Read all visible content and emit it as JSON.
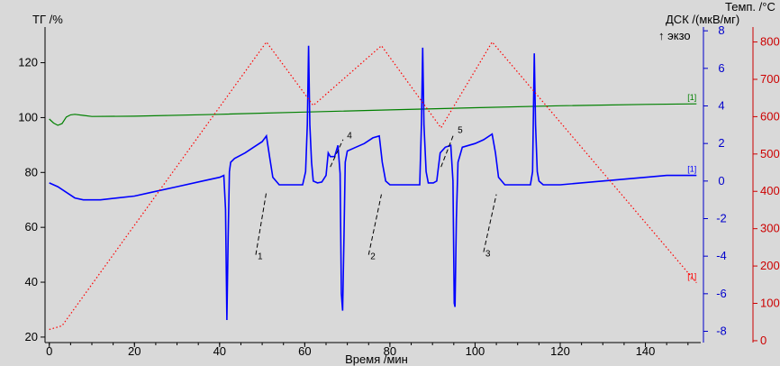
{
  "chart_data": {
    "type": "line",
    "background": "#d9d9d9",
    "x_axis": {
      "label": "Время /мин",
      "min": -1,
      "max": 153,
      "ticks": [
        0,
        20,
        40,
        60,
        80,
        100,
        120,
        140
      ],
      "color": "#000000"
    },
    "axes_left": {
      "label": "ТГ /%",
      "min": 18,
      "max": 133,
      "ticks": [
        20,
        40,
        60,
        80,
        100,
        120
      ],
      "color": "#000000"
    },
    "axes_dsc": {
      "label": "ДСК /(мкВ/мг)",
      "exo_label": "↑ экзо",
      "min": -8.6,
      "max": 8.2,
      "ticks": [
        -8,
        -6,
        -4,
        -2,
        0,
        2,
        4,
        6,
        8
      ],
      "color": "#0000cc"
    },
    "axes_temp": {
      "label": "Темп. /°C",
      "min": -5,
      "max": 840,
      "ticks": [
        0,
        100,
        200,
        300,
        400,
        500,
        600,
        700,
        800
      ],
      "color": "#cc0000"
    },
    "series": [
      {
        "axis": "left",
        "color": "#008000",
        "marker": "[1]",
        "points": [
          [
            0,
            99.5
          ],
          [
            1,
            98
          ],
          [
            2,
            97.2
          ],
          [
            3,
            97.8
          ],
          [
            4,
            100.2
          ],
          [
            5,
            101
          ],
          [
            6,
            101.2
          ],
          [
            8,
            100.8
          ],
          [
            10,
            100.4
          ],
          [
            20,
            100.5
          ],
          [
            40,
            101.2
          ],
          [
            60,
            102
          ],
          [
            80,
            102.8
          ],
          [
            100,
            103.6
          ],
          [
            120,
            104.3
          ],
          [
            140,
            104.8
          ],
          [
            152,
            105
          ]
        ]
      },
      {
        "axis": "dsc",
        "color": "#0000ff",
        "marker": "[1]",
        "points": [
          [
            0,
            -0.1
          ],
          [
            2,
            -0.3
          ],
          [
            4,
            -0.6
          ],
          [
            6,
            -0.9
          ],
          [
            8,
            -1
          ],
          [
            12,
            -1
          ],
          [
            16,
            -0.9
          ],
          [
            20,
            -0.8
          ],
          [
            24,
            -0.6
          ],
          [
            30,
            -0.3
          ],
          [
            36,
            0
          ],
          [
            40,
            0.2
          ],
          [
            41,
            0.3
          ],
          [
            41.4,
            -1.5
          ],
          [
            41.7,
            -7.4
          ],
          [
            42,
            -3
          ],
          [
            42.3,
            0.5
          ],
          [
            42.6,
            1
          ],
          [
            43.5,
            1.2
          ],
          [
            46,
            1.5
          ],
          [
            48,
            1.8
          ],
          [
            50,
            2.1
          ],
          [
            51,
            2.4
          ],
          [
            51.8,
            1.2
          ],
          [
            52.5,
            0.2
          ],
          [
            54,
            -0.2
          ],
          [
            58,
            -0.2
          ],
          [
            59.5,
            -0.2
          ],
          [
            60.2,
            0.5
          ],
          [
            60.6,
            3
          ],
          [
            60.9,
            7.2
          ],
          [
            61.2,
            3
          ],
          [
            61.6,
            1
          ],
          [
            62,
            0
          ],
          [
            63,
            -0.1
          ],
          [
            64,
            -0.05
          ],
          [
            65,
            0.3
          ],
          [
            65.5,
            1.5
          ],
          [
            66,
            1.3
          ],
          [
            67,
            1.3
          ],
          [
            67.8,
            1.9
          ],
          [
            68.3,
            0.4
          ],
          [
            68.6,
            -6
          ],
          [
            68.9,
            -6.9
          ],
          [
            69.2,
            -3
          ],
          [
            69.5,
            1
          ],
          [
            70,
            1.6
          ],
          [
            72,
            1.8
          ],
          [
            74,
            2
          ],
          [
            76,
            2.3
          ],
          [
            77.5,
            2.4
          ],
          [
            78.2,
            1
          ],
          [
            79,
            0
          ],
          [
            80,
            -0.2
          ],
          [
            84,
            -0.2
          ],
          [
            87,
            -0.2
          ],
          [
            87.4,
            3
          ],
          [
            87.7,
            7.1
          ],
          [
            88,
            3
          ],
          [
            88.5,
            0.5
          ],
          [
            89,
            -0.1
          ],
          [
            90.2,
            -0.1
          ],
          [
            91,
            0
          ],
          [
            91.8,
            1.5
          ],
          [
            93,
            1.8
          ],
          [
            94.3,
            1.9
          ],
          [
            94.8,
            0
          ],
          [
            95.1,
            -6.5
          ],
          [
            95.3,
            -6.7
          ],
          [
            95.6,
            -2
          ],
          [
            96,
            1
          ],
          [
            97,
            1.8
          ],
          [
            100,
            2
          ],
          [
            102,
            2.2
          ],
          [
            104,
            2.5
          ],
          [
            104.8,
            1.5
          ],
          [
            105.5,
            0.2
          ],
          [
            107,
            -0.2
          ],
          [
            113,
            -0.2
          ],
          [
            113.5,
            0.5
          ],
          [
            113.9,
            6.8
          ],
          [
            114.2,
            3
          ],
          [
            114.6,
            0.5
          ],
          [
            115,
            0
          ],
          [
            116,
            -0.2
          ],
          [
            120,
            -0.2
          ],
          [
            130,
            0
          ],
          [
            140,
            0.2
          ],
          [
            145,
            0.3
          ],
          [
            150,
            0.3
          ],
          [
            152,
            0.3
          ]
        ]
      },
      {
        "axis": "temp",
        "color": "#ff0000",
        "dashed": true,
        "marker": "[1]",
        "points": [
          [
            0,
            30
          ],
          [
            3,
            40
          ],
          [
            51,
            800
          ],
          [
            62,
            630
          ],
          [
            78,
            790
          ],
          [
            92,
            570
          ],
          [
            104,
            800
          ],
          [
            152,
            155
          ]
        ]
      }
    ],
    "annotations": [
      {
        "text": "1",
        "x": 48.5,
        "y": 49,
        "line_from": [
          48.5,
          50
        ],
        "line_to": [
          51,
          73
        ]
      },
      {
        "text": "2",
        "x": 75,
        "y": 49,
        "line_from": [
          75,
          50
        ],
        "line_to": [
          78,
          72
        ]
      },
      {
        "text": "3",
        "x": 102,
        "y": 50,
        "line_from": [
          102,
          51
        ],
        "line_to": [
          105,
          72
        ]
      },
      {
        "text": "4",
        "x": 69.5,
        "y": 93,
        "line_from": [
          66,
          82
        ],
        "line_to": [
          69,
          92
        ]
      },
      {
        "text": "5",
        "x": 95.5,
        "y": 95,
        "line_from": [
          92,
          82
        ],
        "line_to": [
          95,
          94
        ]
      }
    ]
  }
}
